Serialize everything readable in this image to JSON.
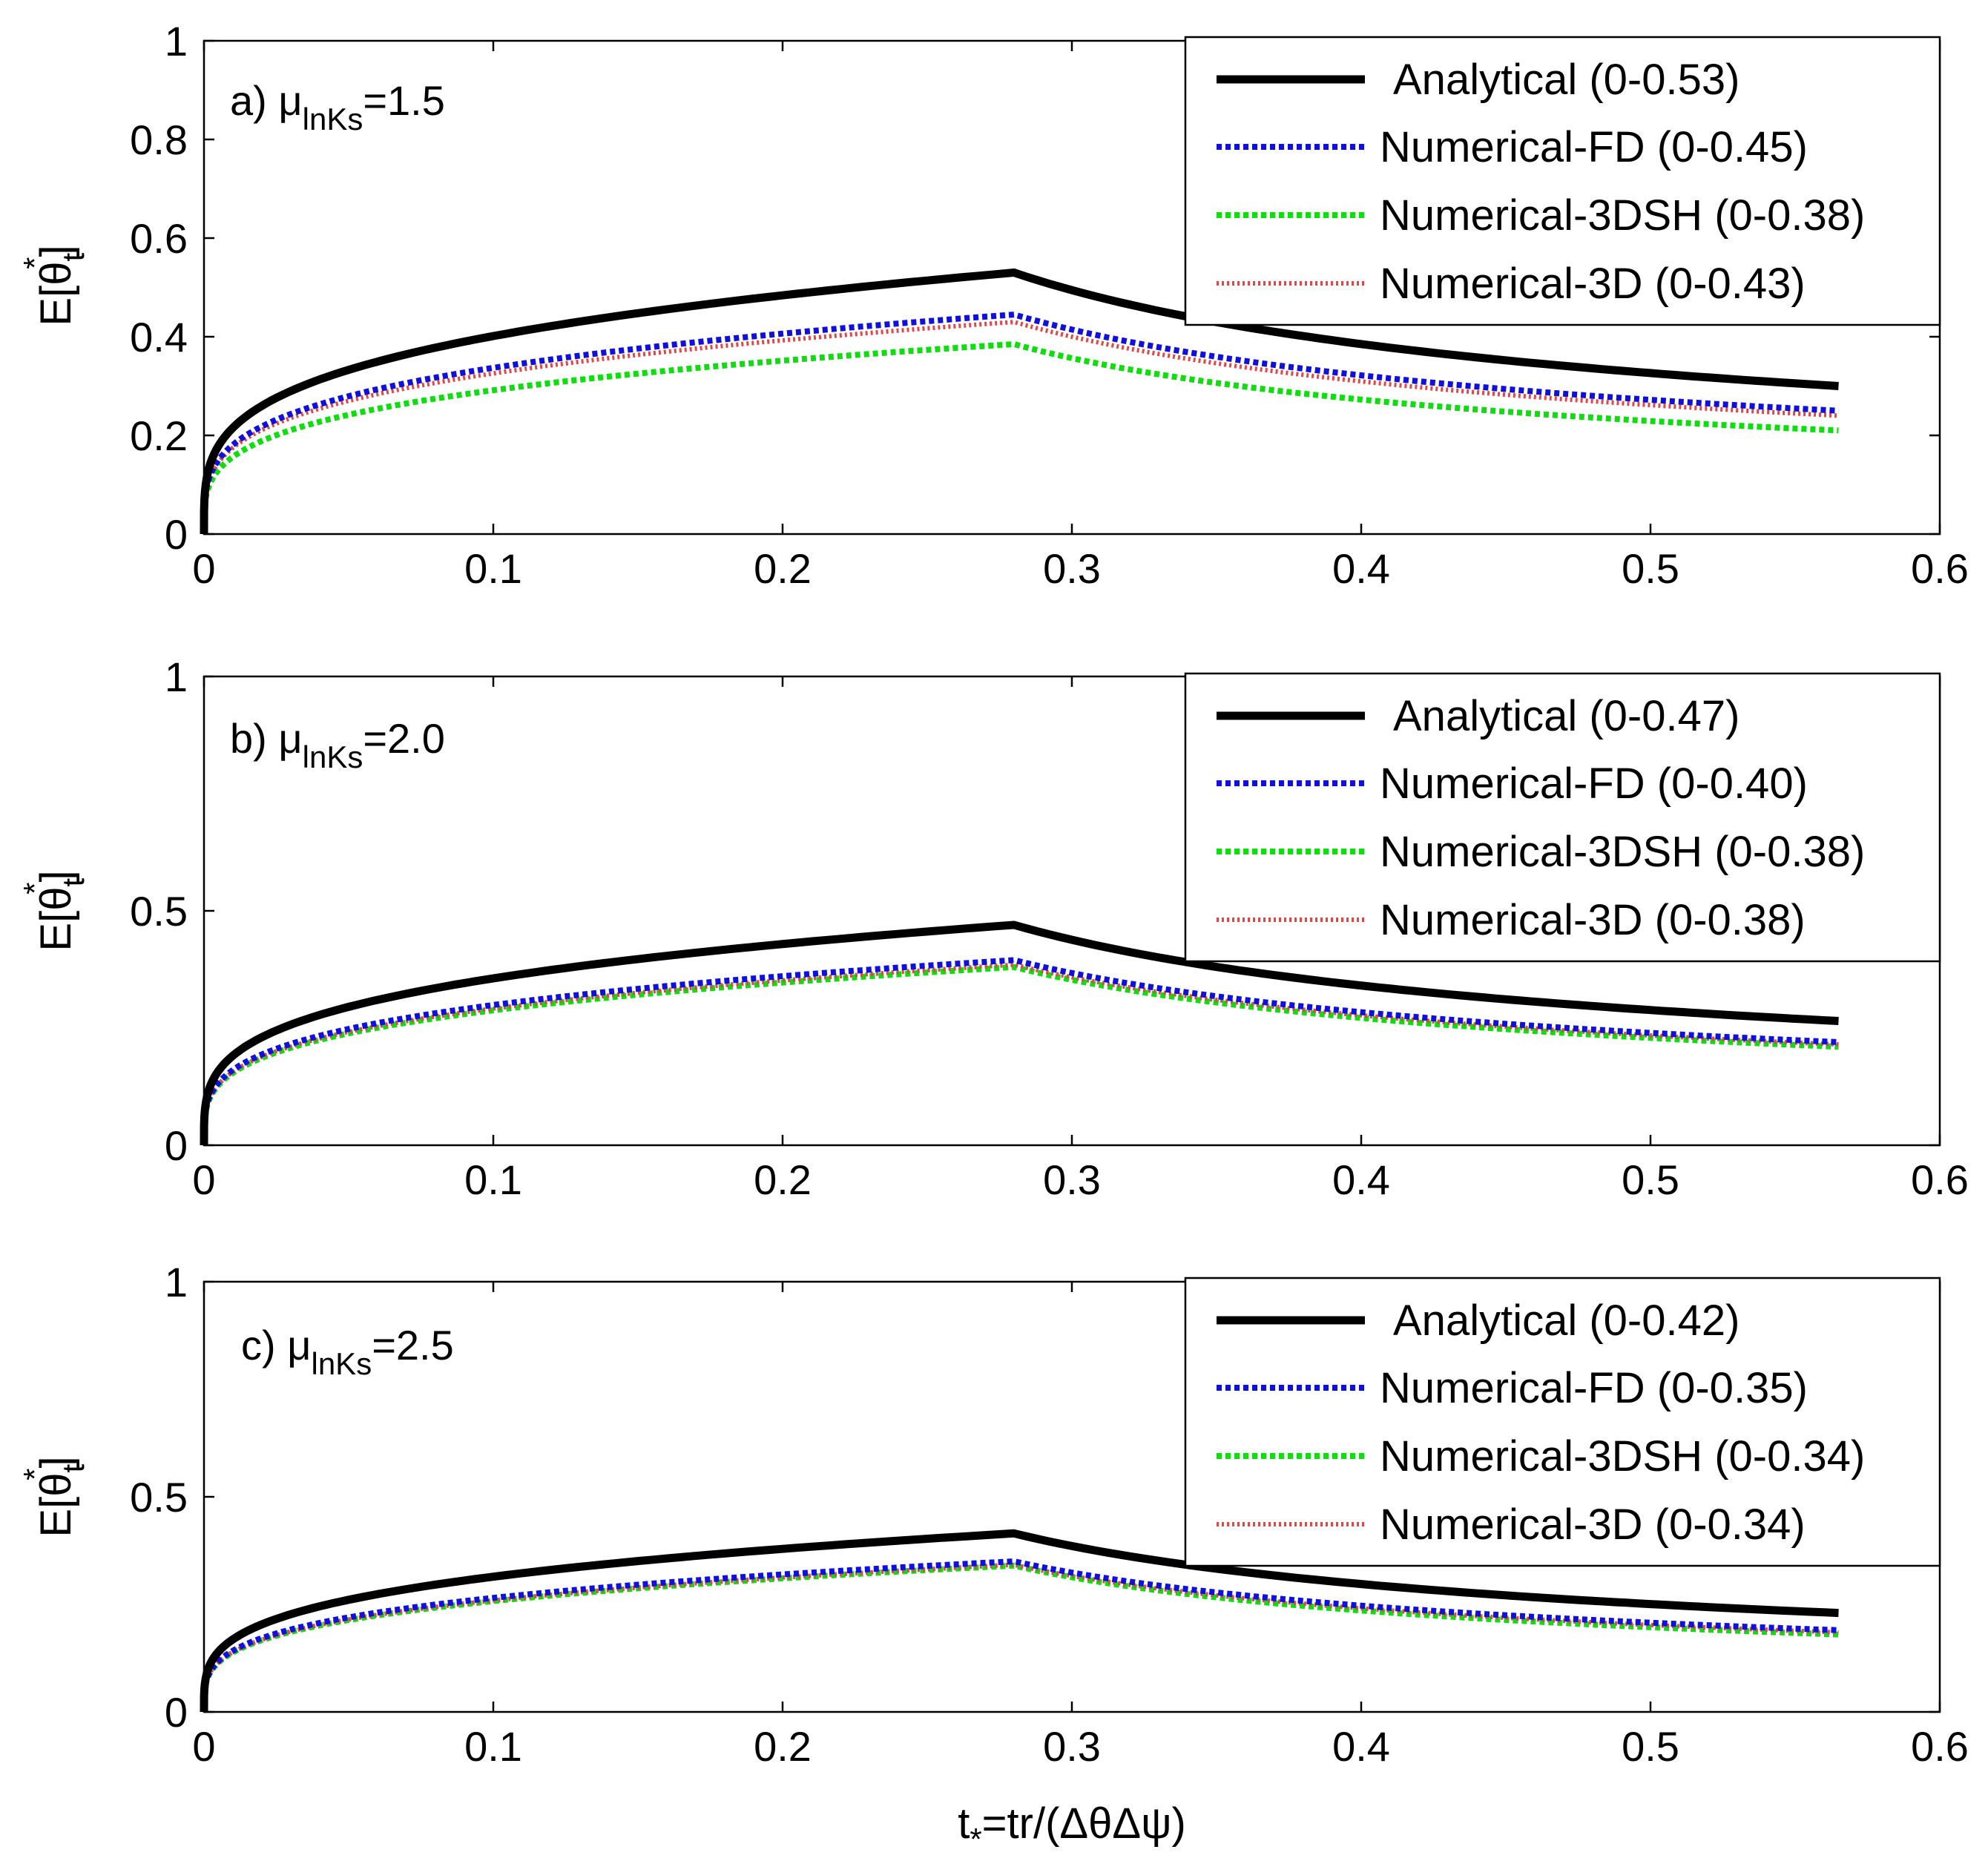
{
  "chart_data": {
    "type": "line",
    "xlabel": {
      "base": "t",
      "sub": "*",
      "rest": "=tr/(ΔθΔψ)"
    },
    "ylabel": {
      "base": "E[θ",
      "sub": "t",
      "sup": "*",
      "close": "]"
    },
    "xlim": [
      0,
      0.6
    ],
    "x_ticks": [
      "0",
      "0.1",
      "0.2",
      "0.3",
      "0.4",
      "0.5",
      "0.6"
    ],
    "x_tick_values": [
      0,
      0.1,
      0.2,
      0.3,
      0.4,
      0.5,
      0.6
    ],
    "peak_x": 0.28,
    "end_x": 0.565,
    "series_style": [
      {
        "name": "Analytical",
        "color": "#000000",
        "dash": ""
      },
      {
        "name": "Numerical-FD",
        "color": "#1010dd",
        "dash": "7 5"
      },
      {
        "name": "Numerical-3DSH",
        "color": "#10dd10",
        "dash": "7 5"
      },
      {
        "name": "Numerical-3D",
        "color": "#e04848",
        "dash": "3 4"
      }
    ],
    "panels": [
      {
        "label": {
          "prefix": "a) μ",
          "sub": "lnKs",
          "value": "=1.5"
        },
        "ylim": [
          0,
          1
        ],
        "y_ticks": [
          "0",
          "0.2",
          "0.4",
          "0.6",
          "0.8",
          "1"
        ],
        "y_tick_values": [
          0,
          0.2,
          0.4,
          0.6,
          0.8,
          1
        ],
        "legend": [
          "Analytical (0-0.53)",
          "Numerical-FD (0-0.45)",
          "Numerical-3DSH (0-0.38)",
          "Numerical-3D (0-0.43)"
        ],
        "series": [
          {
            "name": "Analytical",
            "peak": 0.53,
            "end": 0.3
          },
          {
            "name": "Numerical-FD",
            "peak": 0.445,
            "end": 0.25
          },
          {
            "name": "Numerical-3DSH",
            "peak": 0.385,
            "end": 0.21
          },
          {
            "name": "Numerical-3D",
            "peak": 0.43,
            "end": 0.24
          }
        ]
      },
      {
        "label": {
          "prefix": "b) μ",
          "sub": "lnKs",
          "value": "=2.0"
        },
        "ylim": [
          0,
          1
        ],
        "y_ticks": [
          "0",
          "0.5",
          "1"
        ],
        "y_tick_values": [
          0,
          0.5,
          1
        ],
        "legend": [
          "Analytical (0-0.47)",
          "Numerical-FD (0-0.40)",
          "Numerical-3DSH (0-0.38)",
          "Numerical-3D (0-0.38)"
        ],
        "series": [
          {
            "name": "Analytical",
            "peak": 0.47,
            "end": 0.265
          },
          {
            "name": "Numerical-FD",
            "peak": 0.395,
            "end": 0.22
          },
          {
            "name": "Numerical-3DSH",
            "peak": 0.38,
            "end": 0.21
          },
          {
            "name": "Numerical-3D",
            "peak": 0.385,
            "end": 0.215
          }
        ]
      },
      {
        "label": {
          "prefix": "c) μ",
          "sub": "lnKs",
          "value": "=2.5"
        },
        "ylim": [
          0,
          1
        ],
        "y_ticks": [
          "0",
          "0.5",
          "1"
        ],
        "y_tick_values": [
          0,
          0.5,
          1
        ],
        "legend": [
          "Analytical (0-0.42)",
          "Numerical-FD (0-0.35)",
          "Numerical-3DSH (0-0.34)",
          "Numerical-3D (0-0.34)"
        ],
        "series": [
          {
            "name": "Analytical",
            "peak": 0.415,
            "end": 0.23
          },
          {
            "name": "Numerical-FD",
            "peak": 0.35,
            "end": 0.19
          },
          {
            "name": "Numerical-3DSH",
            "peak": 0.34,
            "end": 0.18
          },
          {
            "name": "Numerical-3D",
            "peak": 0.342,
            "end": 0.185
          }
        ]
      }
    ]
  }
}
